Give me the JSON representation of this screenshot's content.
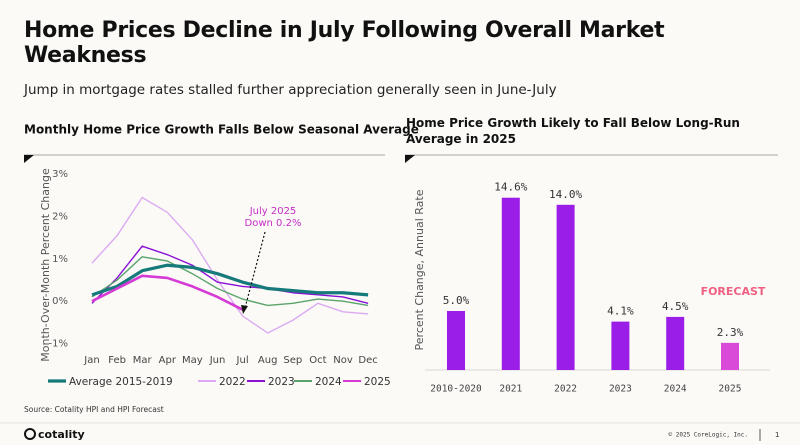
{
  "header": {
    "title": "Home Prices Decline in July Following Overall Market Weakness",
    "subtitle": "Jump in mortgage rates stalled further appreciation generally seen in June-July"
  },
  "chart_data": [
    {
      "type": "line",
      "title": "Monthly Home Price Growth Falls Below Seasonal Average",
      "y_label": "Month-Over-Month Percent Change",
      "categories": [
        "Jan",
        "Feb",
        "Mar",
        "Apr",
        "May",
        "Jun",
        "Jul",
        "Aug",
        "Sep",
        "Oct",
        "Nov",
        "Dec"
      ],
      "ylim": [
        -1.2,
        3.1
      ],
      "yticks": [
        {
          "value": -1,
          "label": "-1%"
        },
        {
          "value": 0,
          "label": "0%"
        },
        {
          "value": 1,
          "label": "1%"
        },
        {
          "value": 2,
          "label": "2%"
        },
        {
          "value": 3,
          "label": "3%"
        }
      ],
      "series": [
        {
          "name": "Average 2015-2019",
          "color": "#167a7a",
          "values": [
            0.15,
            0.35,
            0.72,
            0.85,
            0.8,
            0.65,
            0.45,
            0.3,
            0.25,
            0.2,
            0.2,
            0.15
          ]
        },
        {
          "name": "2022",
          "color": "#dcaaf2",
          "values": [
            0.9,
            1.55,
            2.45,
            2.1,
            1.45,
            0.5,
            -0.35,
            -0.75,
            -0.45,
            -0.05,
            -0.25,
            -0.3
          ]
        },
        {
          "name": "2023",
          "color": "#8a10d6",
          "values": [
            -0.05,
            0.55,
            1.3,
            1.1,
            0.85,
            0.45,
            0.35,
            0.3,
            0.2,
            0.15,
            0.1,
            -0.05
          ]
        },
        {
          "name": "2024",
          "color": "#5aa36b",
          "values": [
            0.1,
            0.5,
            1.05,
            0.95,
            0.65,
            0.3,
            0.05,
            -0.1,
            -0.05,
            0.05,
            0.0,
            -0.1
          ]
        },
        {
          "name": "2025",
          "color": "#d63ad6",
          "values": [
            0.0,
            0.3,
            0.6,
            0.55,
            0.35,
            0.1,
            -0.2,
            null,
            null,
            null,
            null,
            null
          ]
        }
      ],
      "annotation": [
        "July 2025",
        "Down 0.2%"
      ]
    },
    {
      "type": "bar",
      "title": "Home Price Growth Likely to Fall Below Long-Run Average in 2025",
      "y_label": "Percent Change, Annual Rate",
      "categories": [
        "2010-2020",
        "2021",
        "2022",
        "2023",
        "2024",
        "2025"
      ],
      "values": [
        5.0,
        14.6,
        14.0,
        4.1,
        4.5,
        2.3
      ],
      "value_labels": [
        "5.0%",
        "14.6%",
        "14.0%",
        "4.1%",
        "4.5%",
        "2.3%"
      ],
      "colors": [
        "#9b1ee8",
        "#9b1ee8",
        "#9b1ee8",
        "#9b1ee8",
        "#9b1ee8",
        "#d94ad9"
      ],
      "ylim": [
        0,
        15
      ],
      "annotation": "FORECAST"
    }
  ],
  "source": "Source: Cotality HPI and HPI Forecast",
  "footer": {
    "logo": "cotality",
    "copyright": "© 2025 CoreLogic, Inc.",
    "page": "1"
  }
}
